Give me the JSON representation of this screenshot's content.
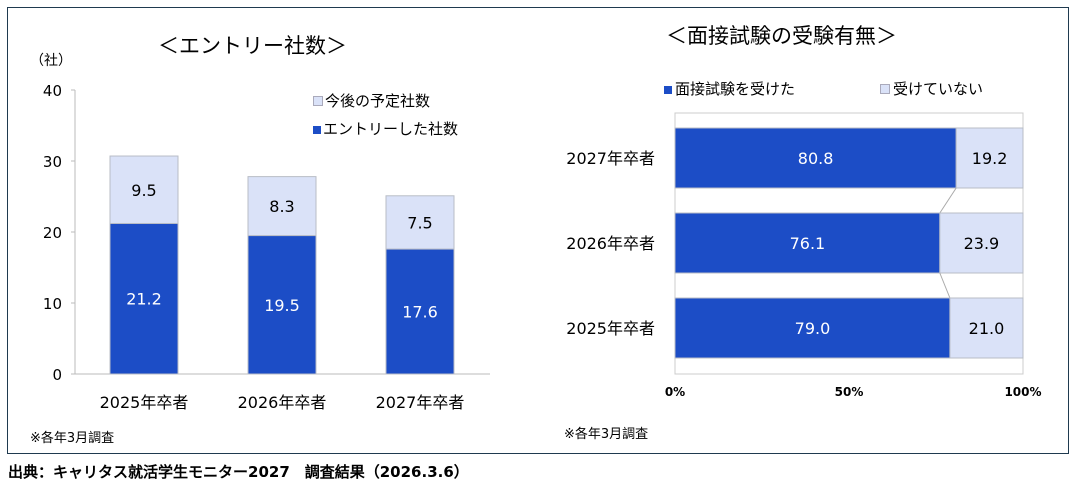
{
  "colors": {
    "entered": "#1C4DC6",
    "planned": "#DAE2F8",
    "border": "#B8BCC6"
  },
  "source": "出典：キャリタス就活学生モニター2027　調査結果（2026.3.6）",
  "chart_data": [
    {
      "type": "bar",
      "stacked": true,
      "title": "＜エントリー社数＞",
      "ylabel": "（社）",
      "ylim": [
        0,
        40
      ],
      "yticks": [
        "0",
        "10",
        "20",
        "30",
        "40"
      ],
      "categories": [
        "2025年卒者",
        "2026年卒者",
        "2027年卒者"
      ],
      "series": [
        {
          "name": "エントリーした社数",
          "values": [
            21.2,
            19.5,
            17.6
          ]
        },
        {
          "name": "今後の予定社数",
          "values": [
            9.5,
            8.3,
            7.5
          ]
        }
      ],
      "legend": [
        "今後の予定社数",
        "エントリーした社数"
      ],
      "legend_position": "top-right",
      "note": "※各年3月調査"
    },
    {
      "type": "bar",
      "orientation": "horizontal",
      "stacked": true,
      "title": "＜面接試験の受験有無＞",
      "xlim": [
        0,
        100
      ],
      "xticks": [
        "0%",
        "50%",
        "100%"
      ],
      "categories": [
        "2027年卒者",
        "2026年卒者",
        "2025年卒者"
      ],
      "series": [
        {
          "name": "面接試験を受けた",
          "values": [
            80.8,
            76.1,
            79.0
          ]
        },
        {
          "name": "受けていない",
          "values": [
            19.2,
            23.9,
            21.0
          ]
        }
      ],
      "legend": [
        "面接試験を受けた",
        "受けていない"
      ],
      "legend_position": "top",
      "note": "※各年3月調査"
    }
  ]
}
